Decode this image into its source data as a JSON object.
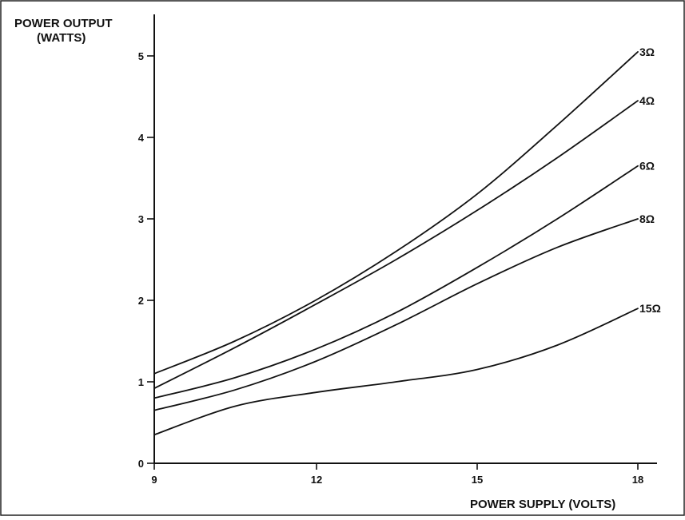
{
  "chart_data": {
    "type": "line",
    "ylabel_line1": "POWER  OUTPUT",
    "ylabel_line2": "(WATTS)",
    "xlabel": "POWER  SUPPLY  (VOLTS)",
    "xlim": [
      9,
      18
    ],
    "ylim": [
      0,
      5
    ],
    "x_ticks": [
      "9",
      "12",
      "15",
      "18"
    ],
    "y_ticks": [
      "0",
      "1",
      "2",
      "3",
      "4",
      "5"
    ],
    "grid": false,
    "legend": "none",
    "series": [
      {
        "name": "3Ω",
        "x": [
          9,
          10.5,
          12,
          13.5,
          15,
          16.5,
          18
        ],
        "y": [
          1.1,
          1.5,
          2.0,
          2.6,
          3.3,
          4.15,
          5.05
        ]
      },
      {
        "name": "4Ω",
        "x": [
          9,
          10.5,
          12,
          13.5,
          15,
          16.5,
          18
        ],
        "y": [
          0.92,
          1.42,
          1.95,
          2.5,
          3.1,
          3.75,
          4.45
        ]
      },
      {
        "name": "6Ω",
        "x": [
          9,
          10.5,
          12,
          13.5,
          15,
          16.5,
          18
        ],
        "y": [
          0.8,
          1.05,
          1.4,
          1.85,
          2.4,
          3.0,
          3.65
        ]
      },
      {
        "name": "8Ω",
        "x": [
          9,
          10.5,
          12,
          13.5,
          15,
          16.5,
          18
        ],
        "y": [
          0.65,
          0.9,
          1.25,
          1.7,
          2.2,
          2.65,
          3.0
        ]
      },
      {
        "name": "15Ω",
        "x": [
          9,
          10.5,
          12,
          13.5,
          15,
          16.5,
          18
        ],
        "y": [
          0.35,
          0.7,
          0.87,
          1.0,
          1.15,
          1.45,
          1.9
        ]
      }
    ]
  }
}
